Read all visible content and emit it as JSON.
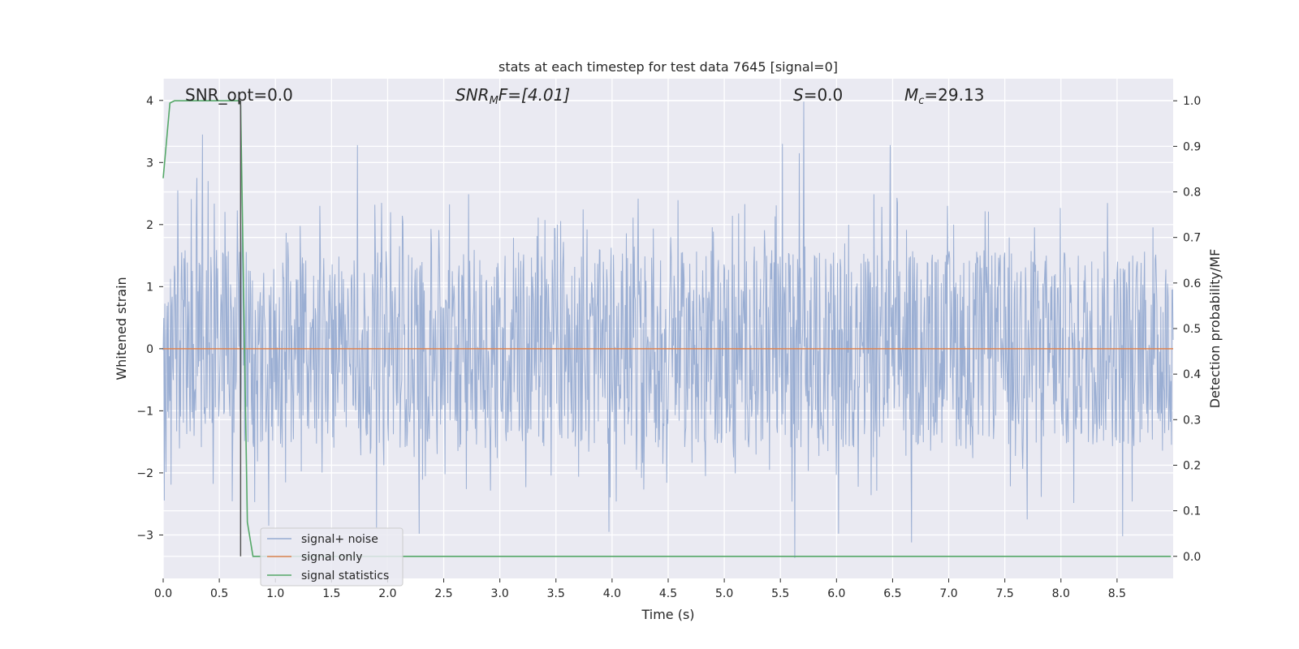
{
  "chart_data": {
    "type": "line",
    "title": "stats at each timestep for test data 7645 [signal=0]",
    "xlabel": "Time (s)",
    "ylabel": "Whitened strain",
    "y2label": "Detection probability/MF",
    "xlim": [
      0,
      9
    ],
    "ylim": [
      -3.7,
      4.35
    ],
    "y2lim": [
      -0.0485,
      1.0485
    ],
    "x_ticks": [
      "0.0",
      "0.5",
      "1.0",
      "1.5",
      "2.0",
      "2.5",
      "3.0",
      "3.5",
      "4.0",
      "4.5",
      "5.0",
      "5.5",
      "6.0",
      "6.5",
      "7.0",
      "7.5",
      "8.0",
      "8.5"
    ],
    "y_ticks": [
      "−3",
      "−2",
      "−1",
      "0",
      "1",
      "2",
      "3",
      "4"
    ],
    "y2_ticks": [
      "0.0",
      "0.1",
      "0.2",
      "0.3",
      "0.4",
      "0.5",
      "0.6",
      "0.7",
      "0.8",
      "0.9",
      "1.0"
    ],
    "grid": true,
    "legend_position": "lower-left",
    "annotations": {
      "snr_opt": "SNR_opt=0.0",
      "snr_mf_main": "SNR",
      "snr_mf_sub": "M",
      "snr_mf_rest": "F=[4.01]",
      "s_var": "S",
      "s_rest": "=0.0",
      "mc_var": "M",
      "mc_sub": "c",
      "mc_rest": "=29.13"
    },
    "marker_line_x": 0.69,
    "series": [
      {
        "name": "signal+ noise",
        "color": "#96abd1",
        "style": "dense-noise",
        "duration": 9.0,
        "samples": 1800,
        "envelope": 1.6,
        "spikes": [
          {
            "x": 0.35,
            "y": 3.45
          },
          {
            "x": 0.3,
            "y": 2.75
          },
          {
            "x": 0.13,
            "y": 2.55
          },
          {
            "x": 0.4,
            "y": 2.7
          },
          {
            "x": 1.73,
            "y": 3.28
          },
          {
            "x": 5.52,
            "y": 3.3
          },
          {
            "x": 5.67,
            "y": 3.15
          },
          {
            "x": 5.71,
            "y": 3.98
          },
          {
            "x": 6.48,
            "y": 3.28
          },
          {
            "x": 5.63,
            "y": -3.37
          },
          {
            "x": 2.28,
            "y": -2.98
          },
          {
            "x": 8.55,
            "y": -3.02
          },
          {
            "x": 3.97,
            "y": -2.95
          },
          {
            "x": 0.94,
            "y": -2.85
          },
          {
            "x": 6.67,
            "y": -3.12
          },
          {
            "x": 6.02,
            "y": -2.98
          },
          {
            "x": 1.9,
            "y": -2.88
          },
          {
            "x": 7.7,
            "y": -2.75
          }
        ]
      },
      {
        "name": "signal only",
        "color": "#dd8452",
        "x": [
          0,
          9
        ],
        "y": [
          0,
          0
        ]
      },
      {
        "name": "signal statistics",
        "color": "#55a868",
        "axis": "right",
        "x": [
          0,
          0.06,
          0.1,
          0.2,
          0.3,
          0.4,
          0.5,
          0.6,
          0.68,
          0.69,
          0.75,
          0.8,
          0.9,
          1.0,
          1.5,
          2.0,
          3.0,
          4.0,
          5.0,
          6.0,
          7.0,
          8.0,
          8.98
        ],
        "y": [
          0.83,
          0.995,
          1.0,
          1.0,
          1.0,
          1.0,
          1.0,
          1.0,
          1.0,
          0.99,
          0.075,
          0.0,
          0.0,
          0.0,
          0.0,
          0.0,
          0.0,
          0.0,
          0.0,
          0.0,
          0.0,
          0.0,
          0.0
        ]
      }
    ]
  }
}
